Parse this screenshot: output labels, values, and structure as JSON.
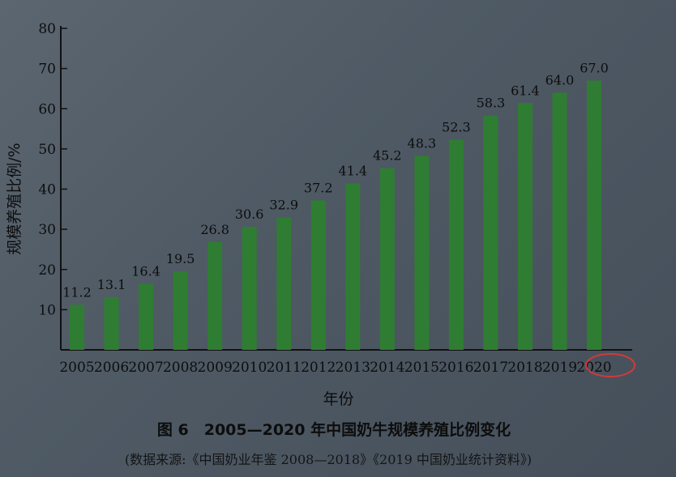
{
  "chart_data": {
    "type": "bar",
    "categories": [
      "2005",
      "2006",
      "2007",
      "2008",
      "2009",
      "2010",
      "2011",
      "2012",
      "2013",
      "2014",
      "2015",
      "2016",
      "2017",
      "2018",
      "2019",
      "2020"
    ],
    "values": [
      11.2,
      13.1,
      16.4,
      19.5,
      26.8,
      30.6,
      32.9,
      37.2,
      41.4,
      45.2,
      48.3,
      52.3,
      58.3,
      61.4,
      64.0,
      67.0
    ],
    "value_labels": [
      "11.2",
      "13.1",
      "16.4",
      "19.5",
      "26.8",
      "30.6",
      "32.9",
      "37.2",
      "41.4",
      "45.2",
      "48.3",
      "52.3",
      "58.3",
      "61.4",
      "64.0",
      "67.0"
    ],
    "title": "图 6　2005—2020 年中国奶牛规模养殖比例变化",
    "source_note": "(数据来源:《中国奶业年鉴 2008—2018》《2019 中国奶业统计资料》)",
    "xlabel": "年份",
    "ylabel": "规模养殖比例/%",
    "ylim": [
      0,
      80
    ],
    "yticks": [
      10,
      20,
      30,
      40,
      50,
      60,
      70,
      80
    ],
    "grid": false,
    "legend": "none",
    "bar_color": "#2f7d32",
    "highlight_color": "#d23a3a"
  }
}
